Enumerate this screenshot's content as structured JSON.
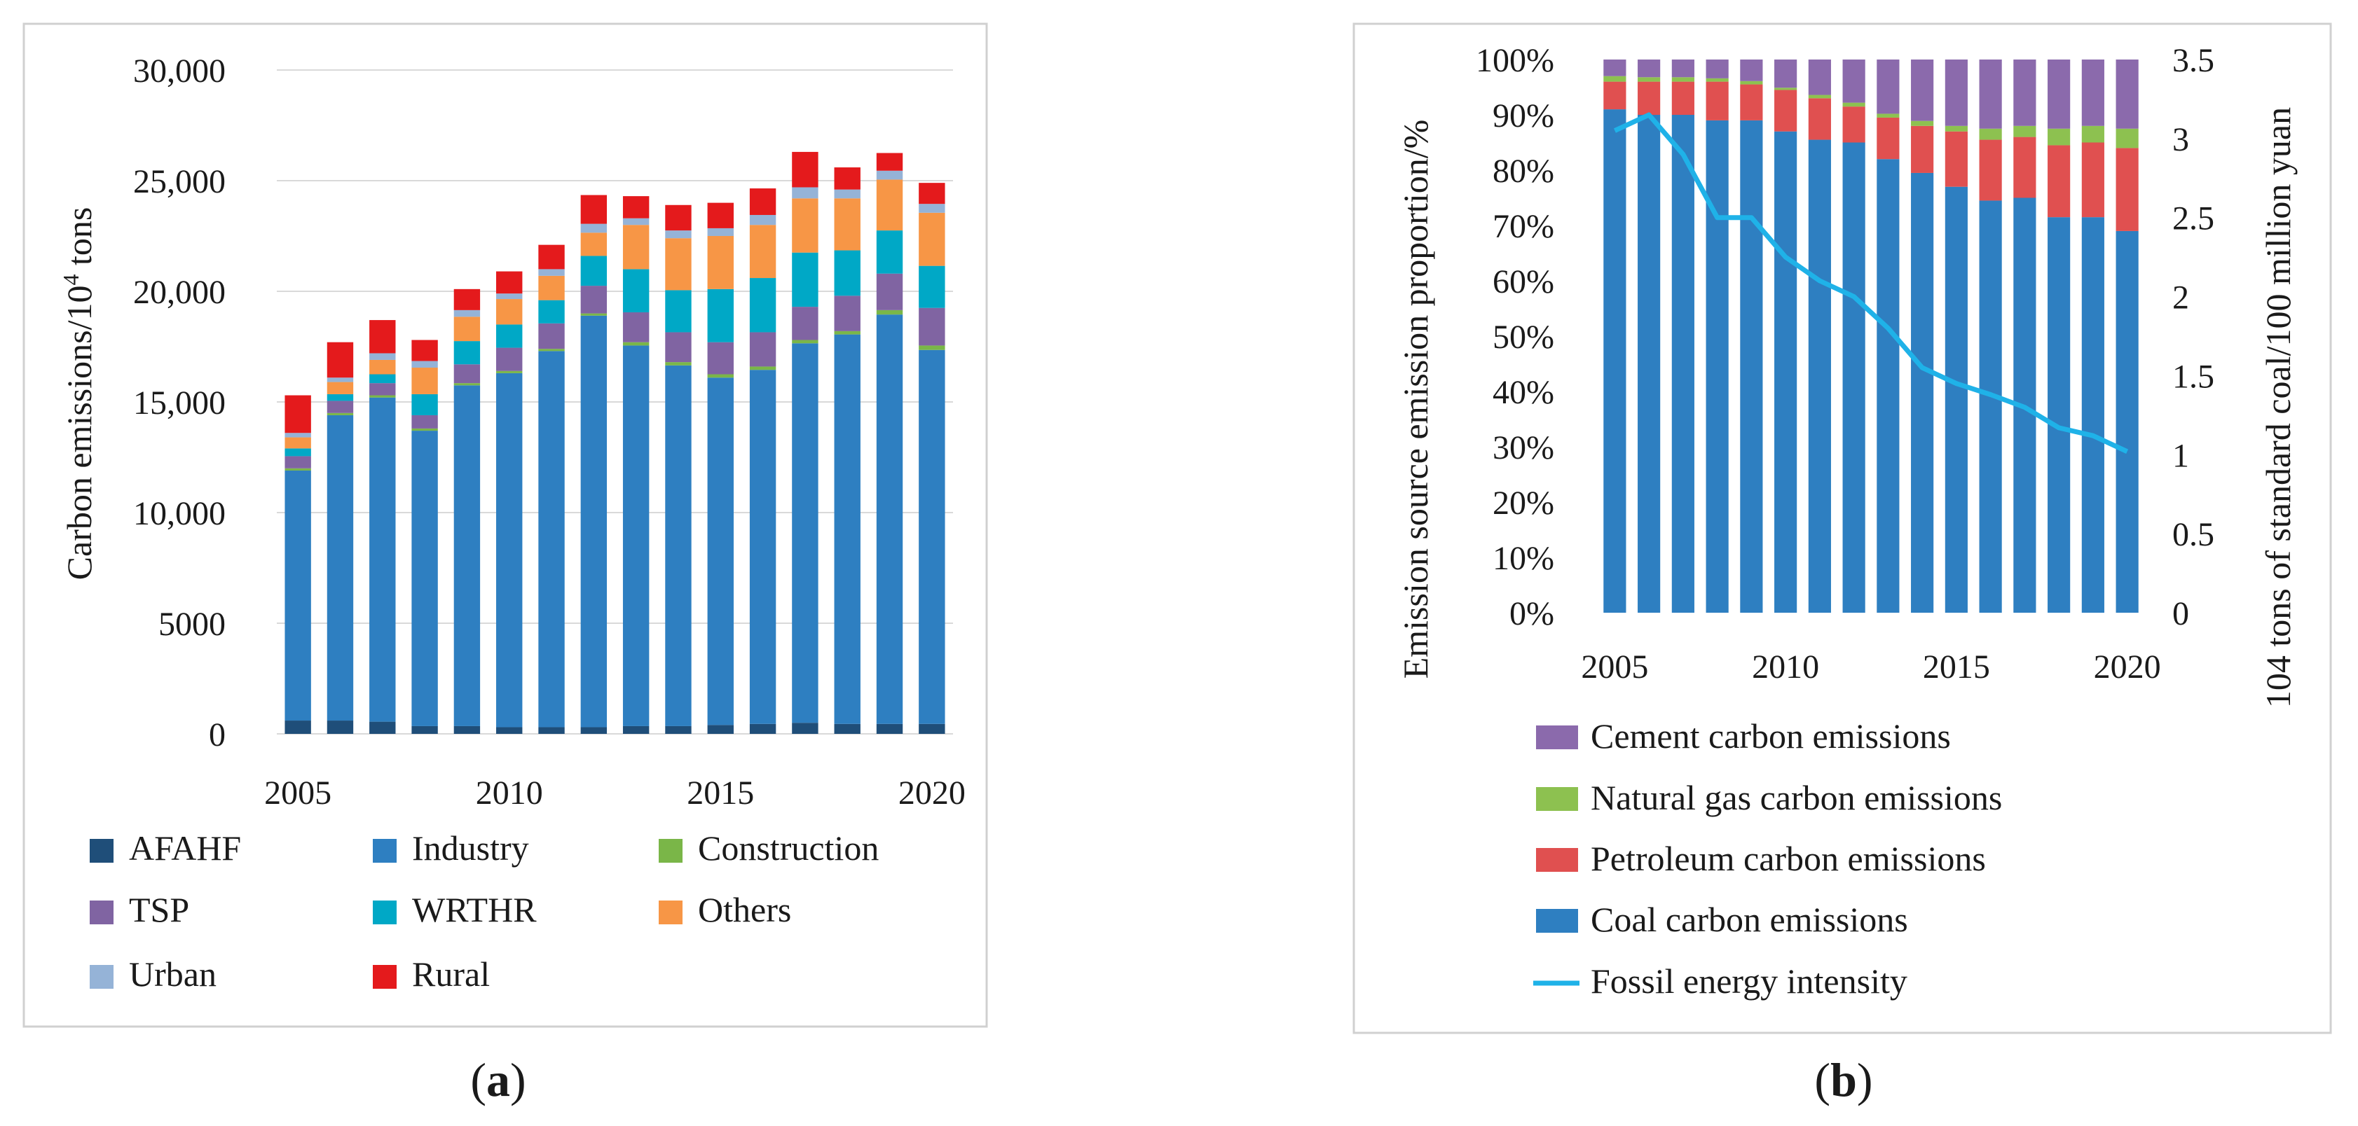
{
  "chart_data": [
    {
      "type": "bar",
      "stacked": true,
      "panel_label": "(a)",
      "panel_letter": "a",
      "ylabel": "Carbon emissions/10",
      "ylabel_sup": "4",
      "ylabel_suffix": " tons",
      "ylim": [
        0,
        30000
      ],
      "yticks": [
        "0",
        "5000",
        "10,000",
        "15,000",
        "20,000",
        "25,000",
        "30,000"
      ],
      "xticks": [
        "2005",
        "2010",
        "2015",
        "2020"
      ],
      "grid": true,
      "legend_position": "bottom",
      "categories": [
        "2005",
        "2006",
        "2007",
        "2008",
        "2009",
        "2010",
        "2011",
        "2012",
        "2013",
        "2014",
        "2015",
        "2016",
        "2017",
        "2018",
        "2019",
        "2020"
      ],
      "series": [
        {
          "name": "AFAHF",
          "color": "#1f4e79",
          "values": [
            600,
            600,
            550,
            350,
            350,
            300,
            300,
            300,
            350,
            350,
            400,
            450,
            500,
            450,
            450,
            450
          ]
        },
        {
          "name": "Industry",
          "color": "#2e7fc1",
          "values": [
            11300,
            13800,
            14650,
            13350,
            15400,
            16000,
            17000,
            18600,
            17200,
            16300,
            15700,
            16000,
            17150,
            17600,
            18500,
            16900
          ]
        },
        {
          "name": "Construction",
          "color": "#7ab648",
          "values": [
            100,
            100,
            100,
            100,
            100,
            100,
            100,
            100,
            150,
            150,
            150,
            150,
            150,
            150,
            200,
            200
          ]
        },
        {
          "name": "TSP",
          "color": "#8064a2",
          "values": [
            550,
            550,
            550,
            600,
            850,
            1050,
            1150,
            1250,
            1350,
            1350,
            1450,
            1550,
            1500,
            1600,
            1650,
            1700
          ]
        },
        {
          "name": "WRTHR",
          "color": "#00a8c6",
          "values": [
            350,
            300,
            400,
            950,
            1050,
            1050,
            1050,
            1350,
            1950,
            1900,
            2400,
            2450,
            2450,
            2050,
            1950,
            1900
          ]
        },
        {
          "name": "Others",
          "color": "#f79646",
          "values": [
            500,
            550,
            650,
            1200,
            1100,
            1150,
            1100,
            1050,
            2000,
            2350,
            2400,
            2400,
            2450,
            2350,
            2300,
            2400
          ]
        },
        {
          "name": "Urban",
          "color": "#95b3d7",
          "values": [
            200,
            200,
            300,
            300,
            300,
            250,
            300,
            400,
            300,
            350,
            350,
            450,
            500,
            400,
            400,
            400
          ]
        },
        {
          "name": "Rural",
          "color": "#e41a1c",
          "values": [
            1700,
            1600,
            1500,
            950,
            950,
            1000,
            1100,
            1300,
            1000,
            1150,
            1150,
            1200,
            1600,
            1000,
            800,
            950
          ]
        }
      ]
    },
    {
      "type": "bar",
      "stacked": true,
      "panel_label": "(b)",
      "panel_letter": "b",
      "ylabel": "Emission source emission proportion/%",
      "y2label": "104 tons of standard coal/100 million yuan",
      "ylim": [
        0,
        100
      ],
      "y2lim": [
        0,
        3.5
      ],
      "yticks": [
        "0%",
        "10%",
        "20%",
        "30%",
        "40%",
        "50%",
        "60%",
        "70%",
        "80%",
        "90%",
        "100%"
      ],
      "y2ticks": [
        "0",
        "0.5",
        "1",
        "1.5",
        "2",
        "2.5",
        "3",
        "3.5"
      ],
      "xticks": [
        "2005",
        "2010",
        "2015",
        "2020"
      ],
      "legend_position": "bottom",
      "categories": [
        "2005",
        "2006",
        "2007",
        "2008",
        "2009",
        "2010",
        "2011",
        "2012",
        "2013",
        "2014",
        "2015",
        "2016",
        "2017",
        "2018",
        "2019",
        "2020"
      ],
      "series": [
        {
          "name": "Coal carbon emissions",
          "color": "#2e7fc1",
          "values": [
            91,
            90,
            90,
            89,
            89,
            87,
            85.5,
            85,
            82,
            79.5,
            77,
            74.5,
            75,
            71.5,
            71.5,
            69
          ]
        },
        {
          "name": "Petroleum carbon emissions",
          "color": "#e05050",
          "values": [
            5,
            6,
            6,
            7,
            6.5,
            7.5,
            7.5,
            6.5,
            7.5,
            8.5,
            10,
            11,
            11,
            13,
            13.5,
            15
          ]
        },
        {
          "name": "Natural gas carbon emissions",
          "color": "#8dc150",
          "values": [
            1,
            0.8,
            0.8,
            0.6,
            0.6,
            0.4,
            0.6,
            0.7,
            0.7,
            0.9,
            1,
            2,
            2,
            3,
            3,
            3.5
          ]
        },
        {
          "name": "Cement carbon emissions",
          "color": "#8b6aac",
          "values": [
            3,
            3.2,
            3.2,
            3.4,
            3.9,
            5.1,
            6.4,
            7.8,
            9.8,
            11.1,
            12,
            12.5,
            12,
            12.5,
            12,
            12.5
          ]
        }
      ],
      "line_series": {
        "name": "Fossil energy intensity",
        "color": "#1fb2e8",
        "axis": "right",
        "values": [
          3.05,
          3.15,
          2.9,
          2.5,
          2.5,
          2.25,
          2.1,
          2.0,
          1.8,
          1.55,
          1.45,
          1.38,
          1.3,
          1.17,
          1.12,
          1.02
        ]
      },
      "legend_order": [
        "Cement carbon emissions",
        "Natural gas carbon emissions",
        "Petroleum carbon emissions",
        "Coal carbon emissions",
        "Fossil energy intensity"
      ]
    }
  ]
}
